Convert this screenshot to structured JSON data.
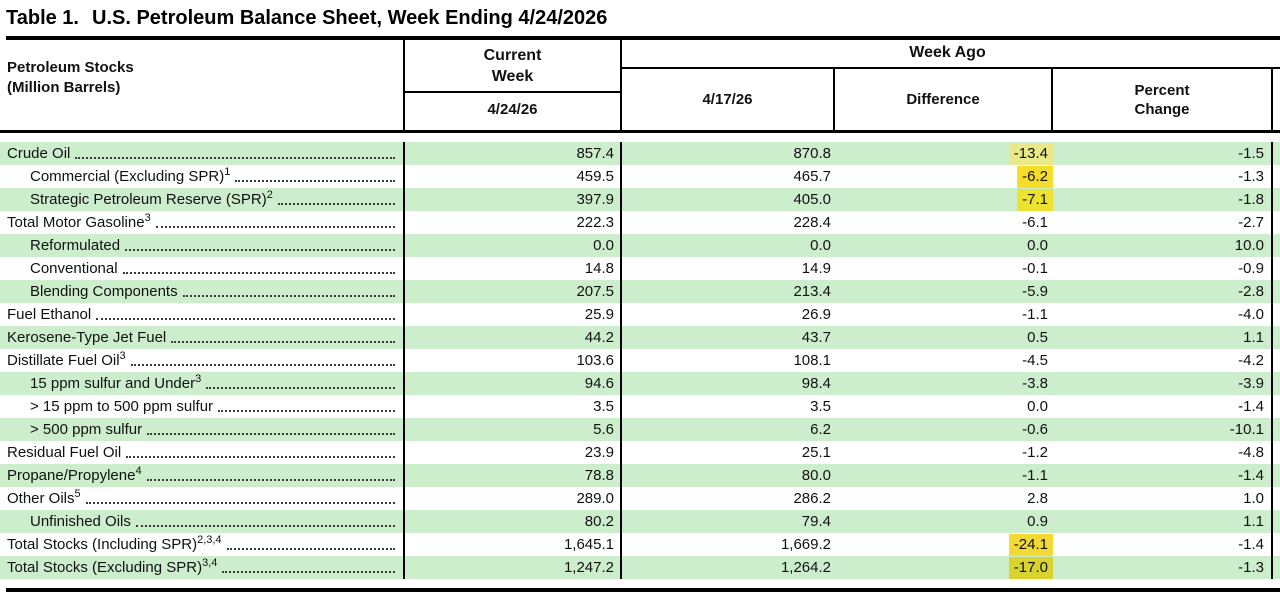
{
  "title_prefix": "Table 1.",
  "title_main": "U.S. Petroleum Balance Sheet, Week Ending 4/24/2026",
  "header": {
    "stub_line1": "Petroleum Stocks",
    "stub_line2": "(Million Barrels)",
    "current_week_line1": "Current",
    "current_week_line2": "Week",
    "current_week_date": "4/24/26",
    "week_ago_label": "Week Ago",
    "week_ago_date": "4/17/26",
    "difference_label": "Difference",
    "percent_change_line1": "Percent",
    "percent_change_line2": "Change"
  },
  "colors": {
    "row_green": "#cceecd",
    "row_white": "#ffffff",
    "border": "#000000",
    "text": "#111111"
  },
  "table": {
    "columns": [
      "Petroleum Stocks (Million Barrels)",
      "Current Week 4/24/26",
      "Week Ago 4/17/26",
      "Week Ago Difference",
      "Week Ago Percent Change"
    ],
    "rows": [
      {
        "label": "Crude Oil",
        "sup": "",
        "indent": 0,
        "green": true,
        "current": "857.4",
        "week_ago": "870.8",
        "difference": "-13.4",
        "diff_highlight": "#eae98a",
        "percent_change": "-1.5"
      },
      {
        "label": "Commercial (Excluding SPR)",
        "sup": "1",
        "indent": 1,
        "green": false,
        "current": "459.5",
        "week_ago": "465.7",
        "difference": "-6.2",
        "diff_highlight": "#f4de2b",
        "percent_change": "-1.3"
      },
      {
        "label": "Strategic Petroleum Reserve (SPR)",
        "sup": "2",
        "indent": 1,
        "green": true,
        "current": "397.9",
        "week_ago": "405.0",
        "difference": "-7.1",
        "diff_highlight": "#ebe32f",
        "percent_change": "-1.8"
      },
      {
        "label": "Total Motor Gasoline",
        "sup": "3",
        "indent": 0,
        "green": false,
        "current": "222.3",
        "week_ago": "228.4",
        "difference": "-6.1",
        "diff_highlight": null,
        "percent_change": "-2.7"
      },
      {
        "label": "Reformulated",
        "sup": "",
        "indent": 1,
        "green": true,
        "current": "0.0",
        "week_ago": "0.0",
        "difference": "0.0",
        "diff_highlight": null,
        "percent_change": "10.0"
      },
      {
        "label": "Conventional",
        "sup": "",
        "indent": 1,
        "green": false,
        "current": "14.8",
        "week_ago": "14.9",
        "difference": "-0.1",
        "diff_highlight": null,
        "percent_change": "-0.9"
      },
      {
        "label": "Blending Components",
        "sup": "",
        "indent": 1,
        "green": true,
        "current": "207.5",
        "week_ago": "213.4",
        "difference": "-5.9",
        "diff_highlight": null,
        "percent_change": "-2.8"
      },
      {
        "label": "Fuel Ethanol",
        "sup": "",
        "indent": 0,
        "green": false,
        "current": "25.9",
        "week_ago": "26.9",
        "difference": "-1.1",
        "diff_highlight": null,
        "percent_change": "-4.0"
      },
      {
        "label": "Kerosene-Type Jet Fuel",
        "sup": "",
        "indent": 0,
        "green": true,
        "current": "44.2",
        "week_ago": "43.7",
        "difference": "0.5",
        "diff_highlight": null,
        "percent_change": "1.1"
      },
      {
        "label": "Distillate Fuel Oil",
        "sup": "3",
        "indent": 0,
        "green": false,
        "current": "103.6",
        "week_ago": "108.1",
        "difference": "-4.5",
        "diff_highlight": null,
        "percent_change": "-4.2"
      },
      {
        "label": "15 ppm sulfur and Under",
        "sup": "3",
        "indent": 1,
        "green": true,
        "current": "94.6",
        "week_ago": "98.4",
        "difference": "-3.8",
        "diff_highlight": null,
        "percent_change": "-3.9"
      },
      {
        "label": "> 15 ppm to 500 ppm sulfur",
        "sup": "",
        "indent": 1,
        "green": false,
        "current": "3.5",
        "week_ago": "3.5",
        "difference": "0.0",
        "diff_highlight": null,
        "percent_change": "-1.4"
      },
      {
        "label": "> 500 ppm sulfur",
        "sup": "",
        "indent": 1,
        "green": true,
        "current": "5.6",
        "week_ago": "6.2",
        "difference": "-0.6",
        "diff_highlight": null,
        "percent_change": "-10.1"
      },
      {
        "label": "Residual Fuel Oil",
        "sup": "",
        "indent": 0,
        "green": false,
        "current": "23.9",
        "week_ago": "25.1",
        "difference": "-1.2",
        "diff_highlight": null,
        "percent_change": "-4.8"
      },
      {
        "label": "Propane/Propylene",
        "sup": "4",
        "indent": 0,
        "green": true,
        "current": "78.8",
        "week_ago": "80.0",
        "difference": "-1.1",
        "diff_highlight": null,
        "percent_change": "-1.4"
      },
      {
        "label": "Other Oils",
        "sup": "5",
        "indent": 0,
        "green": false,
        "current": "289.0",
        "week_ago": "286.2",
        "difference": "2.8",
        "diff_highlight": null,
        "percent_change": "1.0"
      },
      {
        "label": "Unfinished Oils",
        "sup": "",
        "indent": 1,
        "green": true,
        "current": "80.2",
        "week_ago": "79.4",
        "difference": "0.9",
        "diff_highlight": null,
        "percent_change": "1.1"
      },
      {
        "label": "Total Stocks (Including SPR)",
        "sup": "2,3,4",
        "indent": 0,
        "green": false,
        "current": "1,645.1",
        "week_ago": "1,669.2",
        "difference": "-24.1",
        "diff_highlight": "#f2d936",
        "percent_change": "-1.4"
      },
      {
        "label": "Total Stocks (Excluding SPR)",
        "sup": "3,4",
        "indent": 0,
        "green": true,
        "current": "1,247.2",
        "week_ago": "1,264.2",
        "difference": "-17.0",
        "diff_highlight": "#d8d32f",
        "percent_change": "-1.3"
      }
    ]
  }
}
